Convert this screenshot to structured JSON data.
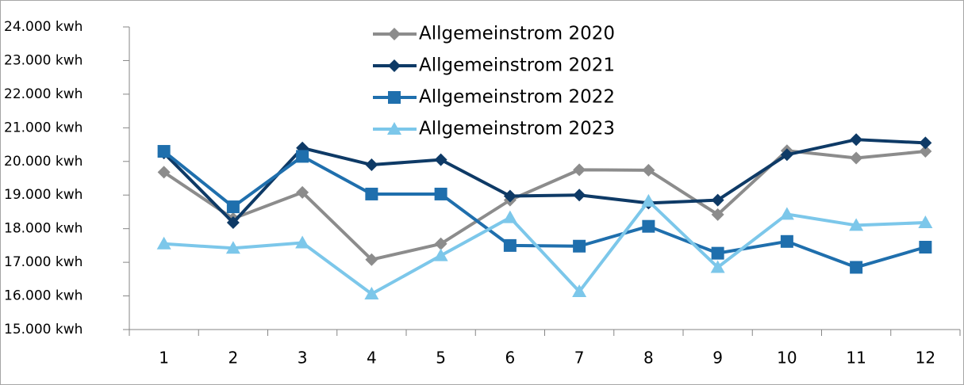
{
  "chart_data": {
    "type": "line",
    "categories": [
      "1",
      "2",
      "3",
      "4",
      "5",
      "6",
      "7",
      "8",
      "9",
      "10",
      "11",
      "12"
    ],
    "series": [
      {
        "name": "Allgemeinstrom 2020",
        "color": "#8c8c8c",
        "marker": "diamond",
        "values": [
          19680,
          18300,
          19080,
          17080,
          17550,
          18850,
          19750,
          19740,
          18420,
          20320,
          20100,
          20300
        ]
      },
      {
        "name": "Allgemeinstrom 2021",
        "color": "#0e3a66",
        "marker": "diamond",
        "values": [
          20250,
          18180,
          20400,
          19900,
          20050,
          18970,
          19000,
          18760,
          18850,
          20200,
          20650,
          20550
        ]
      },
      {
        "name": "Allgemeinstrom 2022",
        "color": "#1f6fad",
        "marker": "square",
        "values": [
          20300,
          18650,
          20150,
          19030,
          19030,
          17500,
          17480,
          18070,
          17270,
          17620,
          16850,
          17450
        ]
      },
      {
        "name": "Allgemeinstrom 2023",
        "color": "#7cc7ea",
        "marker": "triangle",
        "values": [
          17550,
          17420,
          17580,
          16060,
          17200,
          18330,
          16130,
          18820,
          16850,
          18430,
          18100,
          18180
        ]
      }
    ],
    "ylim": [
      15000,
      24000
    ],
    "yticks": [
      {
        "value": 15000,
        "label": "15.000 kwh"
      },
      {
        "value": 16000,
        "label": "16.000 kwh"
      },
      {
        "value": 17000,
        "label": "17.000 kwh"
      },
      {
        "value": 18000,
        "label": "18.000 kwh"
      },
      {
        "value": 19000,
        "label": "19.000 kwh"
      },
      {
        "value": 20000,
        "label": "20.000 kwh"
      },
      {
        "value": 21000,
        "label": "21.000 kwh"
      },
      {
        "value": 22000,
        "label": "22.000 kwh"
      },
      {
        "value": 23000,
        "label": "23.000 kwh"
      },
      {
        "value": 24000,
        "label": "24.000 kwh"
      }
    ],
    "grid": false,
    "legend": "top"
  }
}
